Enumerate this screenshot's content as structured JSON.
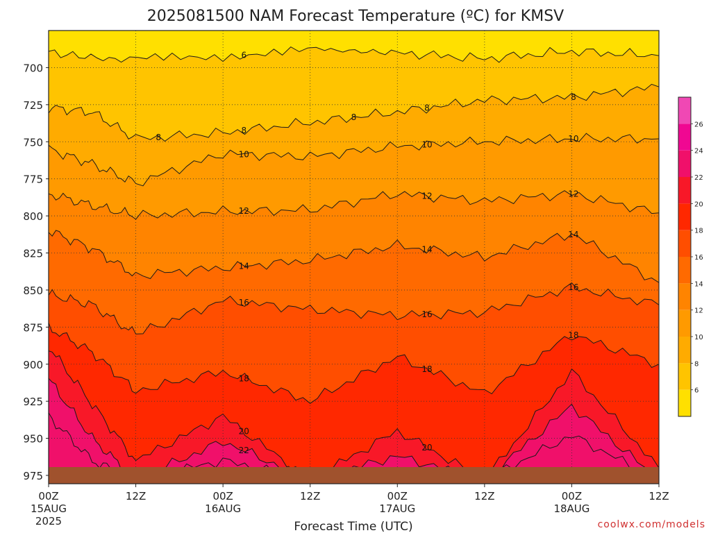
{
  "chart_data": {
    "type": "heatmap",
    "title": "2025081500 NAM Forecast Temperature (ºC) for KMSV",
    "xlabel": "Forecast Time (UTC)",
    "ylabel": "",
    "x_unit": "forecast hour",
    "xlim": [
      0,
      84
    ],
    "ylim": [
      975,
      675
    ],
    "y_ticks": [
      700,
      725,
      750,
      775,
      800,
      825,
      850,
      875,
      900,
      925,
      950,
      975
    ],
    "x_ticks": [
      {
        "hour": 0,
        "lines": [
          "00Z",
          "15AUG",
          "2025"
        ]
      },
      {
        "hour": 12,
        "lines": [
          "12Z"
        ]
      },
      {
        "hour": 24,
        "lines": [
          "00Z",
          "16AUG"
        ]
      },
      {
        "hour": 36,
        "lines": [
          "12Z"
        ]
      },
      {
        "hour": 48,
        "lines": [
          "00Z",
          "17AUG"
        ]
      },
      {
        "hour": 60,
        "lines": [
          "12Z"
        ]
      },
      {
        "hour": 72,
        "lines": [
          "00Z",
          "18AUG"
        ]
      },
      {
        "hour": 84,
        "lines": [
          "12Z"
        ]
      }
    ],
    "contour_levels": [
      6,
      8,
      10,
      12,
      14,
      16,
      18,
      20,
      22,
      24,
      26
    ],
    "colorbar_labels": [
      6,
      8,
      10,
      12,
      14,
      16,
      18,
      20,
      22,
      24,
      26
    ],
    "colors": [
      "#ffe000",
      "#ffc400",
      "#ffab00",
      "#ff9a00",
      "#ff8400",
      "#ff6a00",
      "#ff4e00",
      "#ff2800",
      "#f81828",
      "#f0106a",
      "#f00892",
      "#f048b4"
    ],
    "contour_label_values": [
      "6",
      "8",
      "8",
      "8",
      "8",
      "8",
      "10",
      "10",
      "10",
      "12",
      "12",
      "12",
      "14",
      "14",
      "14",
      "16",
      "16",
      "16",
      "18",
      "18",
      "18",
      "20",
      "20",
      "22"
    ],
    "isotherms": [
      {
        "level": 8,
        "points": [
          [
            0,
            727
          ],
          [
            6,
            730
          ],
          [
            12,
            748
          ],
          [
            24,
            744
          ],
          [
            36,
            737
          ],
          [
            48,
            730
          ],
          [
            60,
            722
          ],
          [
            72,
            720
          ],
          [
            84,
            713
          ]
        ]
      },
      {
        "level": 10,
        "points": [
          [
            0,
            755
          ],
          [
            6,
            765
          ],
          [
            12,
            778
          ],
          [
            24,
            758
          ],
          [
            36,
            760
          ],
          [
            48,
            753
          ],
          [
            60,
            750
          ],
          [
            72,
            748
          ],
          [
            84,
            748
          ]
        ]
      },
      {
        "level": 12,
        "points": [
          [
            0,
            785
          ],
          [
            6,
            793
          ],
          [
            12,
            800
          ],
          [
            24,
            797
          ],
          [
            36,
            796
          ],
          [
            48,
            785
          ],
          [
            60,
            790
          ],
          [
            72,
            785
          ],
          [
            84,
            798
          ]
        ]
      },
      {
        "level": 14,
        "points": [
          [
            0,
            810
          ],
          [
            6,
            822
          ],
          [
            12,
            840
          ],
          [
            24,
            835
          ],
          [
            36,
            830
          ],
          [
            48,
            820
          ],
          [
            60,
            828
          ],
          [
            72,
            812
          ],
          [
            84,
            845
          ]
        ]
      },
      {
        "level": 16,
        "points": [
          [
            0,
            853
          ],
          [
            6,
            860
          ],
          [
            12,
            880
          ],
          [
            24,
            857
          ],
          [
            36,
            863
          ],
          [
            48,
            867
          ],
          [
            60,
            865
          ],
          [
            72,
            848
          ],
          [
            84,
            860
          ]
        ]
      },
      {
        "level": 18,
        "points": [
          [
            0,
            875
          ],
          [
            6,
            892
          ],
          [
            12,
            918
          ],
          [
            24,
            905
          ],
          [
            36,
            925
          ],
          [
            48,
            895
          ],
          [
            60,
            920
          ],
          [
            72,
            880
          ],
          [
            84,
            900
          ]
        ]
      },
      {
        "level": 20,
        "points": [
          [
            0,
            888
          ],
          [
            6,
            927
          ],
          [
            12,
            965
          ],
          [
            24,
            935
          ],
          [
            36,
            978
          ],
          [
            48,
            945
          ],
          [
            60,
            978
          ],
          [
            72,
            905
          ],
          [
            84,
            970
          ]
        ]
      },
      {
        "level": 22,
        "points": [
          [
            0,
            910
          ],
          [
            6,
            950
          ],
          [
            12,
            978
          ],
          [
            24,
            952
          ],
          [
            36,
            978
          ],
          [
            48,
            962
          ],
          [
            60,
            978
          ],
          [
            72,
            928
          ],
          [
            84,
            978
          ]
        ]
      },
      {
        "level": 24,
        "points": [
          [
            0,
            935
          ],
          [
            6,
            965
          ],
          [
            12,
            978
          ],
          [
            24,
            965
          ],
          [
            36,
            978
          ],
          [
            48,
            978
          ],
          [
            60,
            978
          ],
          [
            72,
            948
          ],
          [
            84,
            978
          ]
        ]
      }
    ],
    "colorbar": true,
    "grid": true
  },
  "credit": "coolwx.com/models"
}
